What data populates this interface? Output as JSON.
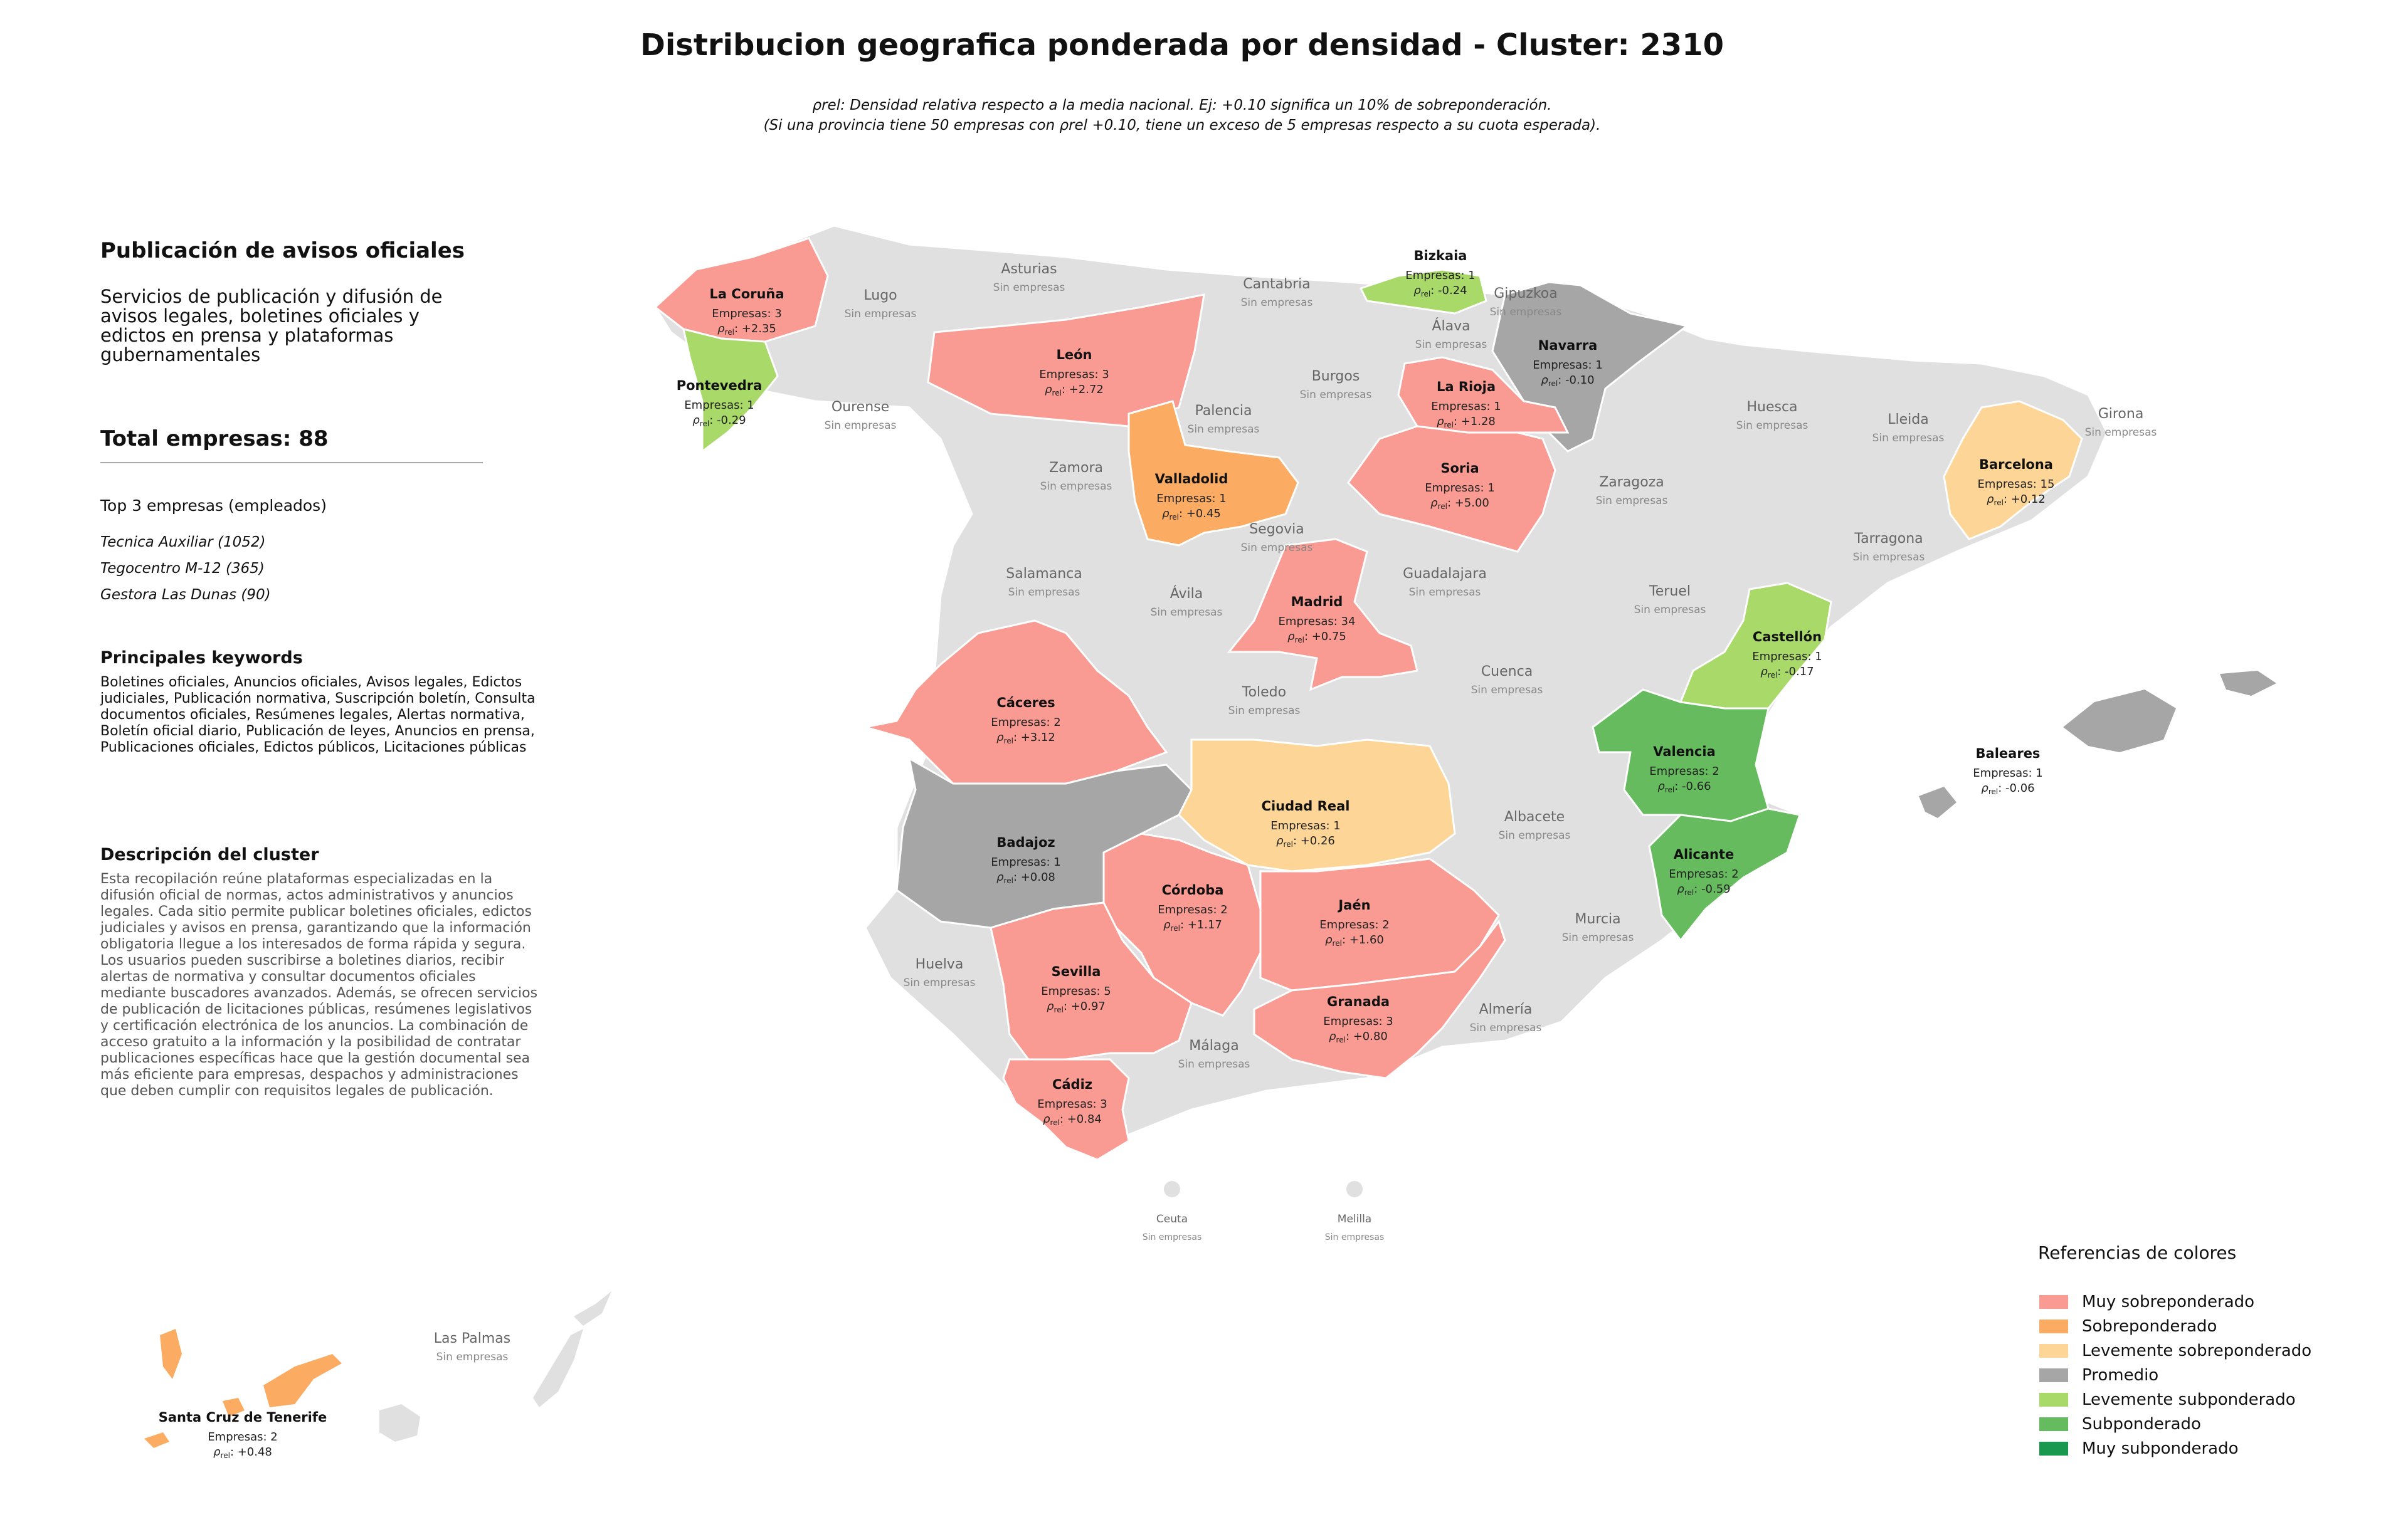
{
  "title": "Distribucion geografica ponderada por densidad - Cluster: 2310",
  "subtitle_lines": [
    "ρrel: Densidad relativa respecto a la media nacional. Ej: +0.10 significa un 10% de sobreponderación.",
    "(Si una provincia tiene 50 empresas con ρrel +0.10, tiene un exceso de 5 empresas respecto a su cuota esperada)."
  ],
  "panel": {
    "heading": "Publicación de avisos oficiales",
    "intro": "Servicios de publicación y difusión de avisos legales, boletines oficiales y edictos en prensa y plataformas gubernamentales",
    "total": "Total empresas: 88",
    "top_heading": "Top 3 empresas (empleados)",
    "top_companies": [
      "Tecnica Auxiliar (1052)",
      "Tegocentro M-12 (365)",
      "Gestora Las Dunas (90)"
    ],
    "keywords_heading": "Principales keywords",
    "keywords": "Boletines oficiales, Anuncios oficiales, Avisos legales, Edictos judiciales, Publicación normativa, Suscripción boletín, Consulta documentos oficiales, Resúmenes legales, Alertas normativa, Boletín oficial diario, Publicación de leyes, Anuncios en prensa, Publicaciones oficiales, Edictos públicos, Licitaciones públicas",
    "description_heading": "Descripción del cluster",
    "description": "Esta recopilación reúne plataformas especializadas en la difusión oficial de normas, actos administrativos y anuncios legales. Cada sitio permite publicar boletines oficiales, edictos judiciales y avisos en prensa, garantizando que la información obligatoria llegue a los interesados de forma rápida y segura. Los usuarios pueden suscribirse a boletines diarios, recibir alertas de normativa y consultar documentos oficiales mediante buscadores avanzados. Además, se ofrecen servicios de publicación de licitaciones públicas, resúmenes legislativos y certificación electrónica de los anuncios. La combinación de acceso gratuito a la información y la posibilidad de contratar publicaciones específicas hace que la gestión documental sea más eficiente para empresas, despachos y administraciones que deben cumplir con requisitos legales de publicación."
  },
  "map_labels": {
    "empresas_prefix": "Empresas: ",
    "rho_symbol": "ρ",
    "rho_sub": "rel",
    "no_companies": "Sin empresas"
  },
  "colors": {
    "muy_sobre": "#f99b92",
    "sobre": "#fbac62",
    "lev_sobre": "#fdd596",
    "promedio": "#a6a6a6",
    "lev_sub": "#a8d969",
    "sub": "#66bb5e",
    "muy_sub": "#1a9850",
    "none": "#e0e0e0"
  },
  "provinces": [
    {
      "name": "La Coruña",
      "empresas": 3,
      "rho": "+2.35",
      "cat": "muy_sobre"
    },
    {
      "name": "León",
      "empresas": 3,
      "rho": "+2.72",
      "cat": "muy_sobre"
    },
    {
      "name": "Pontevedra",
      "empresas": 1,
      "rho": "-0.29",
      "cat": "lev_sub"
    },
    {
      "name": "Bizkaia",
      "empresas": 1,
      "rho": "-0.24",
      "cat": "lev_sub"
    },
    {
      "name": "Navarra",
      "empresas": 1,
      "rho": "-0.10",
      "cat": "promedio"
    },
    {
      "name": "La Rioja",
      "empresas": 1,
      "rho": "+1.28",
      "cat": "muy_sobre"
    },
    {
      "name": "Soria",
      "empresas": 1,
      "rho": "+5.00",
      "cat": "muy_sobre"
    },
    {
      "name": "Valladolid",
      "empresas": 1,
      "rho": "+0.45",
      "cat": "sobre"
    },
    {
      "name": "Barcelona",
      "empresas": 15,
      "rho": "+0.12",
      "cat": "lev_sobre"
    },
    {
      "name": "Madrid",
      "empresas": 34,
      "rho": "+0.75",
      "cat": "muy_sobre"
    },
    {
      "name": "Castellón",
      "empresas": 1,
      "rho": "-0.17",
      "cat": "lev_sub"
    },
    {
      "name": "Cáceres",
      "empresas": 2,
      "rho": "+3.12",
      "cat": "muy_sobre"
    },
    {
      "name": "Valencia",
      "empresas": 2,
      "rho": "-0.66",
      "cat": "sub"
    },
    {
      "name": "Baleares",
      "empresas": 1,
      "rho": "-0.06",
      "cat": "promedio"
    },
    {
      "name": "Ciudad Real",
      "empresas": 1,
      "rho": "+0.26",
      "cat": "lev_sobre"
    },
    {
      "name": "Badajoz",
      "empresas": 1,
      "rho": "+0.08",
      "cat": "promedio"
    },
    {
      "name": "Alicante",
      "empresas": 2,
      "rho": "-0.59",
      "cat": "sub"
    },
    {
      "name": "Córdoba",
      "empresas": 2,
      "rho": "+1.17",
      "cat": "muy_sobre"
    },
    {
      "name": "Jaén",
      "empresas": 2,
      "rho": "+1.60",
      "cat": "muy_sobre"
    },
    {
      "name": "Sevilla",
      "empresas": 5,
      "rho": "+0.97",
      "cat": "muy_sobre"
    },
    {
      "name": "Granada",
      "empresas": 3,
      "rho": "+0.80",
      "cat": "muy_sobre"
    },
    {
      "name": "Cádiz",
      "empresas": 3,
      "rho": "+0.84",
      "cat": "muy_sobre"
    },
    {
      "name": "Santa Cruz de Tenerife",
      "empresas": 2,
      "rho": "+0.48",
      "cat": "sobre"
    }
  ],
  "provinces_without": [
    "Lugo",
    "Asturias",
    "Cantabria",
    "Gipuzkoa",
    "Álava",
    "Ourense",
    "Burgos",
    "Palencia",
    "Huesca",
    "Lleida",
    "Girona",
    "Zamora",
    "Zaragoza",
    "Segovia",
    "Tarragona",
    "Salamanca",
    "Ávila",
    "Guadalajara",
    "Teruel",
    "Toledo",
    "Cuenca",
    "Albacete",
    "Huelva",
    "Murcia",
    "Almería",
    "Málaga",
    "Ceuta",
    "Melilla",
    "Las Palmas"
  ],
  "legend": {
    "title": "Referencias de colores",
    "items": [
      {
        "label": "Muy sobreponderado",
        "color": "#f99b92"
      },
      {
        "label": "Sobreponderado",
        "color": "#fbac62"
      },
      {
        "label": "Levemente sobreponderado",
        "color": "#fdd596"
      },
      {
        "label": "Promedio",
        "color": "#a6a6a6"
      },
      {
        "label": "Levemente subponderado",
        "color": "#a8d969"
      },
      {
        "label": "Subponderado",
        "color": "#66bb5e"
      },
      {
        "label": "Muy subponderado",
        "color": "#1a9850"
      }
    ]
  }
}
